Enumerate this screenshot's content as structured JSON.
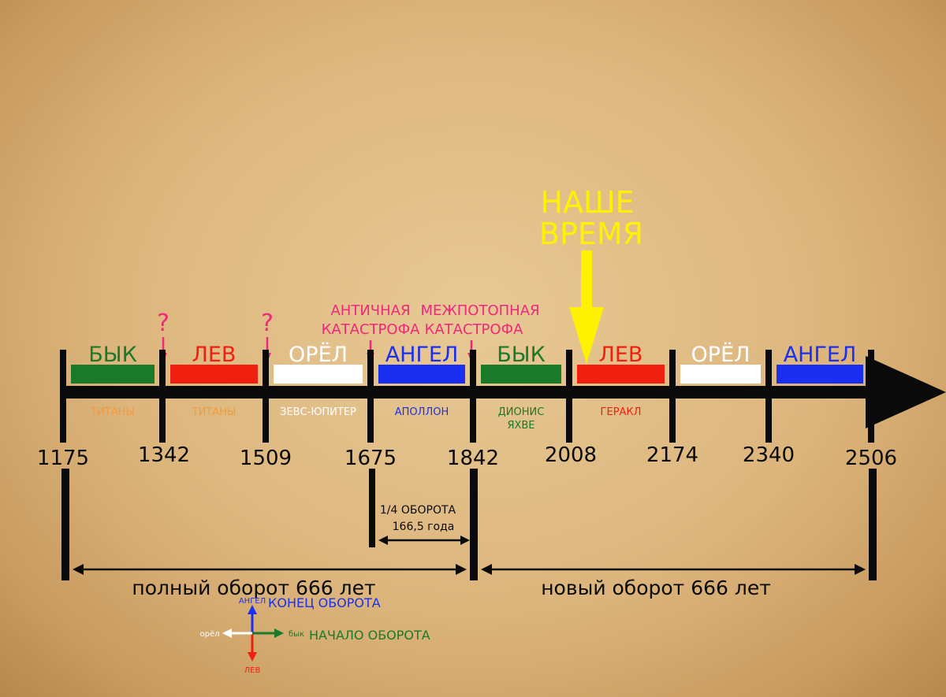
{
  "now_label": [
    "НАШЕ",
    "ВРЕМЯ"
  ],
  "colors": {
    "bull": "#1a7a2a",
    "lion": "#f02010",
    "eagle": "#ffffff",
    "angel": "#1a2ff0",
    "pink": "#f0287a",
    "orange": "#f59a3a",
    "yellow": "#fff200",
    "axis": "#0a0a0a"
  },
  "ticks": [
    "1175",
    "1342",
    "1509",
    "1675",
    "1842",
    "2008",
    "2174",
    "2340",
    "2506"
  ],
  "eras": [
    {
      "label": "БЫК",
      "color": "bull",
      "deity": "ТИТАНЫ",
      "deity_color": "orange"
    },
    {
      "label": "ЛЕВ",
      "color": "lion",
      "deity": "ТИТАНЫ",
      "deity_color": "orange"
    },
    {
      "label": "ОРЁЛ",
      "color": "eagle",
      "deity": "ЗЕВС-ЮПИТЕР",
      "deity_color": "eagle"
    },
    {
      "label": "АНГЕЛ",
      "color": "angel",
      "deity": "АПОЛЛОН",
      "deity_color": "angel"
    },
    {
      "label": "БЫК",
      "color": "bull",
      "deity": "ДИОНИС",
      "deity2": "ЯХВЕ",
      "deity_color": "bull"
    },
    {
      "label": "ЛЕВ",
      "color": "lion",
      "deity": "ГЕРАКЛ",
      "deity_color": "lion"
    },
    {
      "label": "ОРЁЛ",
      "color": "eagle",
      "deity": "",
      "deity_color": "eagle"
    },
    {
      "label": "АНГЕЛ",
      "color": "angel",
      "deity": "",
      "deity_color": "angel"
    }
  ],
  "question_marks": [
    "?",
    "?"
  ],
  "catastrophes": [
    {
      "lines": [
        "АНТИЧНАЯ",
        "КАТАСТРОФА"
      ]
    },
    {
      "lines": [
        "МЕЖПОТОПНАЯ",
        "КАТАСТРОФА"
      ]
    }
  ],
  "quarter": {
    "line1": "1/4 ОБОРОТА",
    "line2": "166,5 года"
  },
  "full_turn": "полный оборот 666 лет",
  "new_turn": "новый оборот 666 лет",
  "legend": {
    "up": "АНГЕЛ",
    "left": "орёл",
    "right": "бык",
    "down": "ЛЕВ",
    "end_label": "КОНЕЦ ОБОРОТА",
    "start_label": "НАЧАЛО ОБОРОТА"
  }
}
